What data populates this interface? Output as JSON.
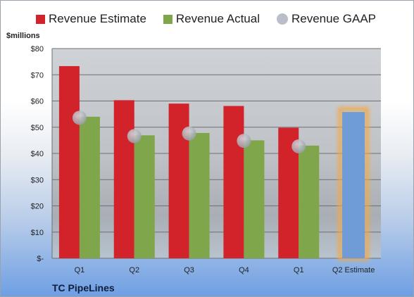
{
  "legend": {
    "estimate_label": "Revenue Estimate",
    "actual_label": "Revenue Actual",
    "gaap_label": "Revenue GAAP"
  },
  "unit_label": "$millions",
  "company": "TC PipeLines",
  "colors": {
    "estimate": "#d2232a",
    "actual": "#7fa64a",
    "gaap": "#b9bec8",
    "forecast": "#6f9bd6",
    "forecast_glow": "#f0a94a"
  },
  "chart_data": {
    "type": "bar",
    "categories": [
      "Q1",
      "Q2",
      "Q3",
      "Q4",
      "Q1",
      "Q2 Estimate"
    ],
    "y_ticks": [
      "$-",
      "$10",
      "$20",
      "$30",
      "$40",
      "$50",
      "$60",
      "$70",
      "$80"
    ],
    "ylim": [
      0,
      80
    ],
    "grid": true,
    "legend_position": "top",
    "series": [
      {
        "name": "Revenue Estimate",
        "values": [
          73.3,
          60.3,
          59.0,
          58.1,
          49.8,
          null
        ]
      },
      {
        "name": "Revenue Actual",
        "values": [
          54.0,
          46.9,
          47.8,
          45.0,
          43.0,
          55.8
        ]
      },
      {
        "name": "Revenue GAAP",
        "values": [
          53.6,
          46.6,
          47.6,
          44.8,
          42.7,
          null
        ]
      }
    ],
    "forecast_category_index": 5
  }
}
